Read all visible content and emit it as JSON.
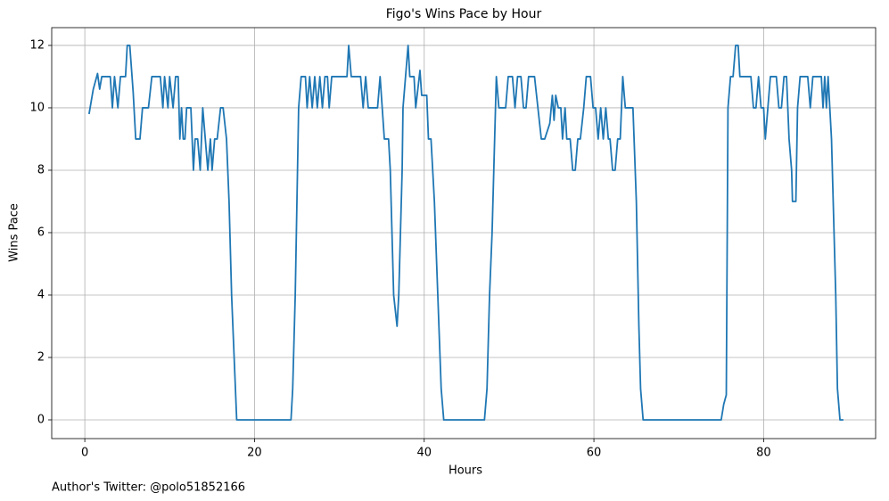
{
  "chart_data": {
    "type": "line",
    "title": "Figo's Wins Pace by Hour",
    "xlabel": "Hours",
    "ylabel": "Wins Pace",
    "footnote": "Author's Twitter: @polo51852166",
    "color": "#1f77b4",
    "grid": true,
    "xlim": [
      -3.9,
      93.2
    ],
    "ylim": [
      -0.6,
      12.57
    ],
    "xticks": [
      0,
      20,
      40,
      60,
      80
    ],
    "yticks": [
      0,
      2,
      4,
      6,
      8,
      10,
      12
    ],
    "x": [
      0.5,
      1,
      1.5,
      1.75,
      2,
      3,
      3.25,
      3.5,
      3.9,
      4.2,
      4.8,
      5,
      5.3,
      5.7,
      6,
      6.5,
      6.8,
      7.5,
      7.9,
      8.9,
      9.2,
      9.4,
      9.8,
      10,
      10.4,
      10.7,
      11,
      11.2,
      11.4,
      11.6,
      11.8,
      12,
      12.5,
      12.8,
      13,
      13.3,
      13.6,
      13.9,
      14.2,
      14.5,
      14.8,
      15,
      15.3,
      15.6,
      16,
      16.3,
      16.7,
      17,
      17.3,
      17.6,
      17.9,
      24.3,
      24.5,
      24.8,
      25.2,
      25.5,
      26,
      26.2,
      26.5,
      26.8,
      27.1,
      27.4,
      27.7,
      28,
      28.3,
      28.6,
      28.8,
      29.1,
      30.9,
      31.1,
      31.4,
      32.5,
      32.8,
      33.1,
      33.4,
      34.5,
      34.8,
      35.3,
      35.8,
      36,
      36.4,
      36.8,
      37,
      37.4,
      37.5,
      38.1,
      38.3,
      38.8,
      39,
      39.5,
      39.7,
      40.3,
      40.5,
      40.8,
      41.2,
      41.6,
      42,
      42.3,
      47.1,
      47.4,
      47.7,
      48,
      48.3,
      48.5,
      48.8,
      49.6,
      49.9,
      50.4,
      50.7,
      51,
      51.4,
      51.7,
      52,
      52.3,
      53,
      53.4,
      53.8,
      54.2,
      54.8,
      55.1,
      55.3,
      55.5,
      55.8,
      56.1,
      56.3,
      56.6,
      56.8,
      57.2,
      57.5,
      57.8,
      58.1,
      58.4,
      58.8,
      59.1,
      59.6,
      59.9,
      60.2,
      60.5,
      60.8,
      61.1,
      61.4,
      61.7,
      61.9,
      62.2,
      62.5,
      62.8,
      63.1,
      63.4,
      63.7,
      64.6,
      65,
      65.3,
      65.5,
      65.8,
      75,
      75.3,
      75.6,
      75.8,
      76.1,
      76.4,
      76.7,
      77,
      77.2,
      78.5,
      78.8,
      79.1,
      79.4,
      79.7,
      80,
      80.2,
      80.5,
      80.8,
      81.5,
      81.8,
      82.1,
      82.4,
      82.7,
      83,
      83.3,
      83.4,
      83.8,
      84,
      84.3,
      85.2,
      85.5,
      85.8,
      86.8,
      87,
      87.2,
      87.4,
      87.6,
      88,
      88.3,
      88.5,
      88.7,
      89,
      89.4
    ],
    "values": [
      9.8,
      10.6,
      11.1,
      10.6,
      11,
      11,
      10,
      11,
      10,
      11,
      11,
      12,
      12,
      10.5,
      9,
      9,
      10,
      10,
      11,
      11,
      10,
      11,
      10,
      11,
      10,
      11,
      11,
      9,
      10,
      9,
      9,
      10,
      10,
      8,
      9,
      9,
      8,
      10,
      9,
      8,
      9,
      8,
      9,
      9,
      10,
      10,
      9,
      7,
      4,
      2,
      0,
      0,
      1,
      4,
      10,
      11,
      11,
      10,
      11,
      10,
      11,
      10,
      11,
      10,
      11,
      11,
      10,
      11,
      11,
      12,
      11,
      11,
      10,
      11,
      10,
      10,
      11,
      9,
      9,
      8,
      4,
      3,
      4,
      8,
      10,
      12,
      11,
      11,
      10,
      11.2,
      10.4,
      10.4,
      9,
      9,
      7,
      4,
      1,
      0,
      0,
      1,
      4,
      6,
      9,
      11,
      10,
      10,
      11,
      11,
      10,
      11,
      11,
      10,
      10,
      11,
      11,
      10,
      9,
      9,
      9.5,
      10.4,
      9.6,
      10.4,
      10,
      10,
      9,
      10,
      9,
      9,
      8,
      8,
      9,
      9,
      10,
      11,
      11,
      10,
      10,
      9,
      10,
      9,
      10,
      9,
      9,
      8,
      8,
      9,
      9,
      11,
      10,
      10,
      7,
      3,
      1,
      0,
      0,
      0.5,
      0.8,
      10,
      11,
      11,
      12,
      12,
      11,
      11,
      10,
      10,
      11,
      10,
      10,
      9,
      10,
      11,
      11,
      10,
      10,
      11,
      11,
      9,
      8,
      7,
      7,
      10,
      11,
      11,
      10,
      11,
      11,
      10,
      11,
      10,
      11,
      9,
      6,
      4,
      1,
      0,
      0
    ]
  }
}
